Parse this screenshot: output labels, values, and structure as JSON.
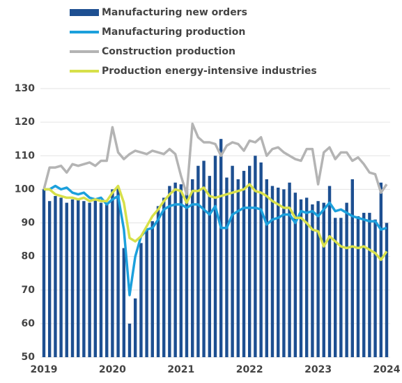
{
  "chart_data": {
    "type": "combo",
    "x": [
      2019,
      2019.083,
      2019.167,
      2019.25,
      2019.333,
      2019.417,
      2019.5,
      2019.583,
      2019.667,
      2019.75,
      2019.833,
      2019.917,
      2020,
      2020.083,
      2020.167,
      2020.25,
      2020.333,
      2020.417,
      2020.5,
      2020.583,
      2020.667,
      2020.75,
      2020.833,
      2020.917,
      2021,
      2021.083,
      2021.167,
      2021.25,
      2021.333,
      2021.417,
      2021.5,
      2021.583,
      2021.667,
      2021.75,
      2021.833,
      2021.917,
      2022,
      2022.083,
      2022.167,
      2022.25,
      2022.333,
      2022.417,
      2022.5,
      2022.583,
      2022.667,
      2022.75,
      2022.833,
      2022.917,
      2023,
      2023.083,
      2023.167,
      2023.25,
      2023.333,
      2023.417,
      2023.5,
      2023.583,
      2023.667,
      2023.75,
      2023.833,
      2023.917,
      2024
    ],
    "series": [
      {
        "name": "Manufacturing new orders",
        "type": "bar",
        "color": "#1d4f91",
        "values": [
          100,
          96.5,
          98,
          97.5,
          96,
          97,
          97,
          96.5,
          96,
          97,
          96,
          95.5,
          100,
          100.5,
          82.5,
          60,
          67.5,
          84,
          88,
          90.5,
          95,
          97.5,
          101,
          102,
          101.5,
          100.5,
          103,
          107,
          108.5,
          104,
          110,
          115,
          103.5,
          107,
          103,
          105.5,
          107,
          110,
          108,
          103,
          101,
          100.5,
          100,
          102,
          99,
          97,
          97.5,
          95.5,
          96.5,
          96,
          101,
          91.5,
          91.5,
          96,
          103,
          92,
          93,
          93,
          91,
          102,
          90
        ]
      },
      {
        "name": "Manufacturing production",
        "type": "line",
        "color": "#1ca0dc",
        "values": [
          100,
          100,
          101,
          100,
          100.5,
          99,
          98.5,
          99,
          97.5,
          97,
          97.5,
          95.5,
          97,
          98,
          88,
          68.5,
          80,
          86,
          88,
          88.5,
          91,
          94,
          95,
          95.5,
          95.5,
          94.5,
          95.5,
          95.5,
          94,
          92.5,
          95,
          88.5,
          88.5,
          92.5,
          93.5,
          94.5,
          94.5,
          94.5,
          94,
          89.5,
          91,
          91.5,
          92.5,
          92.5,
          90,
          93.5,
          93,
          93.5,
          92,
          94,
          96,
          93.5,
          94,
          93,
          92,
          91.5,
          91,
          90.5,
          90.5,
          88,
          88.5
        ]
      },
      {
        "name": "Construction production",
        "type": "line",
        "color": "#b4b4b4",
        "values": [
          100,
          106.5,
          106.5,
          107,
          105,
          107.5,
          107,
          107.5,
          108,
          107,
          108.5,
          108.5,
          118.5,
          111,
          109,
          110.5,
          111.5,
          111,
          110.5,
          111.5,
          111,
          110.5,
          112,
          110.5,
          104,
          98.5,
          119.5,
          115.5,
          114,
          114,
          113.5,
          110,
          113,
          114,
          113.5,
          111.5,
          114.5,
          114,
          115.5,
          110,
          112,
          112.5,
          111,
          110,
          109,
          108.5,
          112,
          112,
          101.5,
          111,
          112.5,
          109,
          111,
          111,
          108.5,
          109.5,
          107.5,
          105,
          104.5,
          99,
          101.5
        ]
      },
      {
        "name": "Production energy-intensive industries",
        "type": "line",
        "color": "#d7e04a",
        "values": [
          100,
          100,
          98.5,
          98,
          97.5,
          97.5,
          97,
          97.5,
          96.5,
          97,
          96.5,
          96.5,
          99,
          101,
          96,
          85.5,
          84.5,
          86,
          89,
          92,
          94,
          96.5,
          98.5,
          100,
          99.5,
          96,
          99.5,
          99.5,
          100.5,
          98,
          97.5,
          98,
          98.5,
          99,
          99.5,
          100,
          101.5,
          99.5,
          99,
          98,
          96.5,
          95.5,
          94.5,
          94.5,
          91.5,
          91.5,
          90,
          88,
          87.5,
          83,
          86,
          84.5,
          83,
          82.5,
          83,
          82.5,
          83,
          82,
          81,
          79,
          81.5
        ]
      }
    ],
    "xlim": [
      2019,
      2024
    ],
    "xticks": [
      2019,
      2020,
      2021,
      2022,
      2023,
      2024
    ],
    "ylim": [
      50,
      130
    ],
    "yticks": [
      50,
      60,
      70,
      80,
      90,
      100,
      110,
      120,
      130
    ],
    "grid": true
  }
}
